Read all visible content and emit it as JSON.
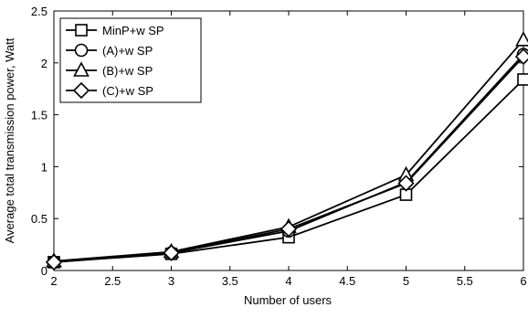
{
  "chart_data": {
    "type": "line",
    "title": "",
    "xlabel": "Number of users",
    "ylabel": "Average total transmission power, Watt",
    "xlim": [
      2,
      6
    ],
    "ylim": [
      0,
      2.5
    ],
    "xticks": [
      "2",
      "2.5",
      "3",
      "3.5",
      "4",
      "4.5",
      "5",
      "5.5",
      "6"
    ],
    "yticks": [
      "0",
      "0.5",
      "1",
      "1.5",
      "2",
      "2.5"
    ],
    "grid": false,
    "legend_position": "top-left",
    "x": [
      2,
      3,
      4,
      5,
      6
    ],
    "series": [
      {
        "name": "MinP+w SP",
        "marker": "square",
        "color": "#000000",
        "values": [
          0.08,
          0.16,
          0.32,
          0.73,
          1.84
        ]
      },
      {
        "name": "(A)+w SP",
        "marker": "circle",
        "color": "#000000",
        "values": [
          0.08,
          0.17,
          0.38,
          0.85,
          2.08
        ]
      },
      {
        "name": "(B)+w SP",
        "marker": "triangle",
        "color": "#000000",
        "values": [
          0.09,
          0.18,
          0.42,
          0.92,
          2.22
        ]
      },
      {
        "name": "(C)+w SP",
        "marker": "diamond",
        "color": "#000000",
        "values": [
          0.08,
          0.17,
          0.4,
          0.84,
          2.06
        ]
      }
    ]
  }
}
